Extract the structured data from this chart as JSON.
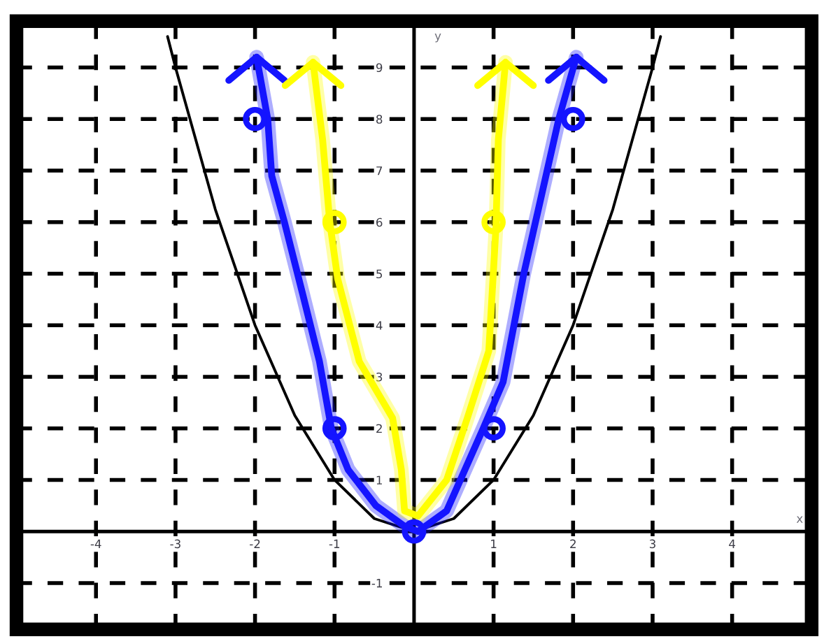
{
  "chart_data": {
    "type": "line",
    "xlabel": "x",
    "ylabel": "y",
    "xlim": [
      -5,
      5
    ],
    "ylim": [
      -1.9,
      9.9
    ],
    "xticks": [
      -4,
      -3,
      -2,
      -1,
      1,
      2,
      3,
      4
    ],
    "yticks": [
      -1,
      1,
      2,
      3,
      4,
      5,
      6,
      7,
      8,
      9
    ],
    "grid": true,
    "line_style": "solid",
    "series": [
      {
        "color": "#000000",
        "marker": "none",
        "x": [
          -3.1,
          -3,
          -2.5,
          -2,
          -1.5,
          -1,
          -0.5,
          0,
          0.5,
          1,
          1.5,
          2,
          2.5,
          3,
          3.1
        ],
        "values": [
          9.6,
          9,
          6.25,
          4,
          2.25,
          1,
          0.25,
          0,
          0.25,
          1,
          2.25,
          4,
          6.25,
          9,
          9.6
        ]
      },
      {
        "color": "#1414ff",
        "marker": "none",
        "x": [
          -1.98,
          -1.84,
          -1.79,
          -1.63,
          -1.4,
          -1.19,
          -1.04,
          -0.83,
          -0.48,
          -0.12,
          0.05,
          0.41,
          0.87,
          1.12,
          1.38,
          1.82,
          2.04
        ],
        "values": [
          9.2,
          8.0,
          6.9,
          6.0,
          4.6,
          3.3,
          2.0,
          1.2,
          0.5,
          0.1,
          0,
          0.4,
          2.0,
          2.9,
          5.0,
          8.0,
          9.2
        ]
      },
      {
        "color": "#ffff00",
        "marker": "none",
        "x": [
          -1.27,
          -1.15,
          -1.06,
          -0.96,
          -0.69,
          -0.27,
          -0.16,
          -0.12,
          0.05,
          0.41,
          0.67,
          0.94,
          1.03,
          1.06,
          1.15
        ],
        "values": [
          9.1,
          7.6,
          6.0,
          4.9,
          3.3,
          2.2,
          1.2,
          0.4,
          0.3,
          1.0,
          2.2,
          3.5,
          5.9,
          7.6,
          9.1
        ]
      },
      {
        "type": "scatter",
        "color": "#1414ff",
        "marker": "circle",
        "x": [
          -2,
          -1,
          0,
          1,
          2
        ],
        "values": [
          8,
          2,
          0,
          2,
          8
        ]
      },
      {
        "type": "scatter",
        "color": "#ffff00",
        "marker": "circle",
        "x": [
          -1,
          1
        ],
        "values": [
          6,
          6
        ]
      }
    ]
  }
}
